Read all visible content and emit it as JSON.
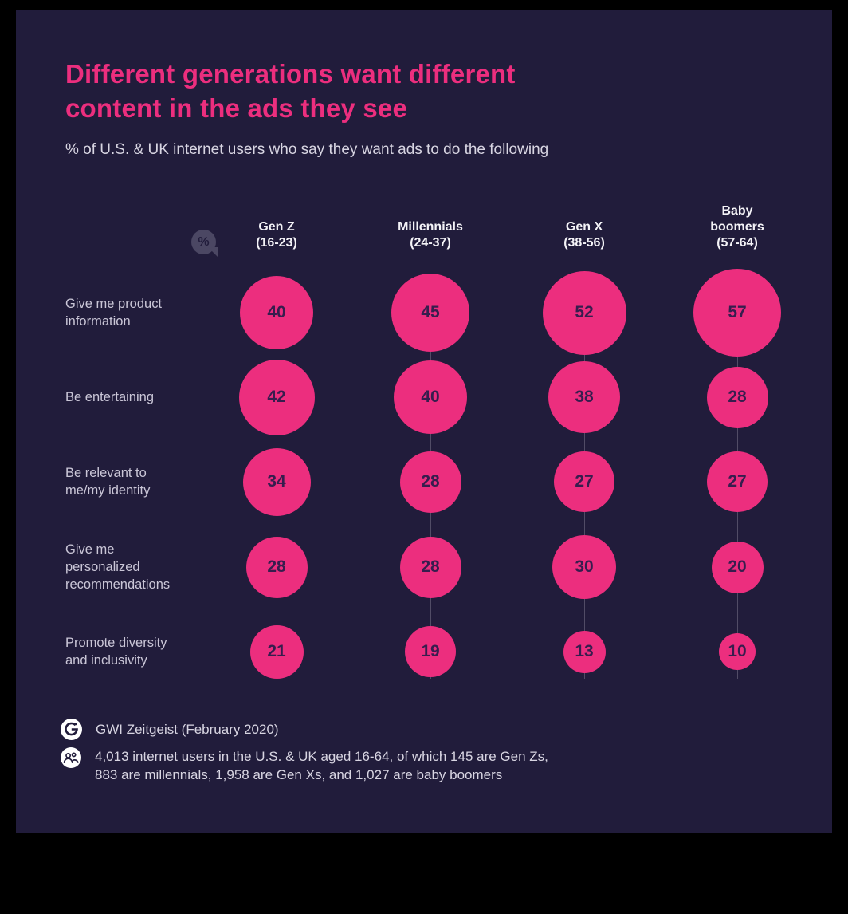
{
  "page": {
    "colors": {
      "frame": "#000000",
      "canvas": "#211c3b",
      "accent_pink": "#ec2e7e",
      "bubble_number": "#371d4e",
      "label_text": "#cac6d7",
      "header_text": "#f4f3f7",
      "connector_line": "#514c66",
      "percent_badge": "#4b4763"
    }
  },
  "header": {
    "title": "Different generations want different\ncontent in the ads they see",
    "subtitle": "% of U.S. & UK internet users who say they want ads to do the following",
    "unit_badge": "%"
  },
  "chart_data": {
    "type": "bubble",
    "title": "Different generations want different content in the ads they see",
    "subtitle": "% of U.S. & UK internet users who say they want ads to do the following",
    "unit": "%",
    "size_encoding": "bubble area proportional to value",
    "columns": [
      {
        "id": "gen-z",
        "label": "Gen Z\n(16-23)"
      },
      {
        "id": "millennials",
        "label": "Millennials\n(24-37)"
      },
      {
        "id": "gen-x",
        "label": "Gen X\n(38-56)"
      },
      {
        "id": "baby-boomers",
        "label": "Baby\nboomers\n(57-64)"
      }
    ],
    "rows": [
      {
        "label": "Give me product\ninformation",
        "values": [
          40,
          45,
          52,
          57
        ]
      },
      {
        "label": "Be entertaining",
        "values": [
          42,
          40,
          38,
          28
        ]
      },
      {
        "label": "Be relevant to\nme/my identity",
        "values": [
          34,
          28,
          27,
          27
        ]
      },
      {
        "label": "Give me\npersonalized\nrecommendations",
        "values": [
          28,
          28,
          30,
          20
        ]
      },
      {
        "label": "Promote diversity\nand inclusivity",
        "values": [
          21,
          19,
          13,
          10
        ]
      }
    ]
  },
  "footer": {
    "source": "GWI Zeitgeist (February 2020)",
    "sample": "4,013 internet users in the U.S. & UK aged 16-64, of which 145 are Gen Zs,\n883 are millennials, 1,958 are Gen Xs, and 1,027 are baby boomers"
  }
}
